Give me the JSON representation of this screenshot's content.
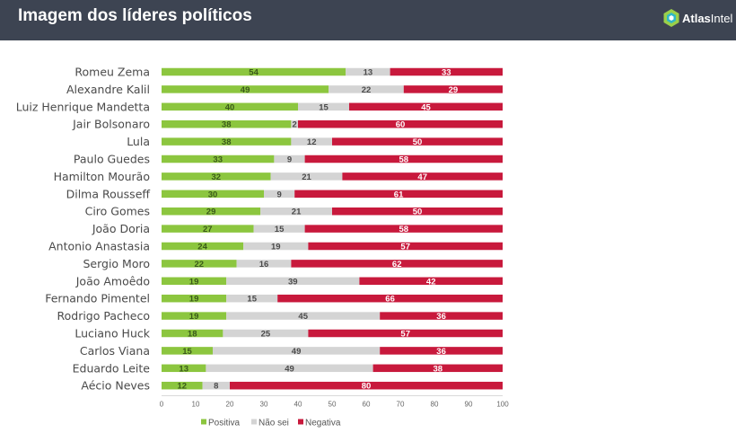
{
  "header": {
    "title": "Imagem dos líderes políticos",
    "brand_atlas": "Atlas",
    "brand_intel": "Intel"
  },
  "colors": {
    "header_bg": "#3d4452",
    "positiva": "#8cc63f",
    "nao_sei": "#d4d4d4",
    "negativa": "#c8193c"
  },
  "chart_data": {
    "type": "bar",
    "orientation": "horizontal",
    "stacked": true,
    "categories": [
      "Romeu Zema",
      "Alexandre Kalil",
      "Luiz Henrique Mandetta",
      "Jair Bolsonaro",
      "Lula",
      "Paulo Guedes",
      "Hamilton Mourão",
      "Dilma Rousseff",
      "Ciro Gomes",
      "João Doria",
      "Antonio Anastasia",
      "Sergio Moro",
      "João Amoêdo",
      "Fernando Pimentel",
      "Rodrigo Pacheco",
      "Luciano Huck",
      "Carlos Viana",
      "Eduardo Leite",
      "Aécio Neves"
    ],
    "series": [
      {
        "name": "Positiva",
        "values": [
          54,
          49,
          40,
          38,
          38,
          33,
          32,
          30,
          29,
          27,
          24,
          22,
          19,
          19,
          19,
          18,
          15,
          13,
          12
        ]
      },
      {
        "name": "Não sei",
        "values": [
          13,
          22,
          15,
          2,
          12,
          9,
          21,
          9,
          21,
          15,
          19,
          16,
          39,
          15,
          45,
          25,
          49,
          49,
          8
        ]
      },
      {
        "name": "Negativa",
        "values": [
          33,
          29,
          45,
          60,
          50,
          58,
          47,
          61,
          50,
          58,
          57,
          62,
          42,
          66,
          36,
          57,
          36,
          38,
          80
        ]
      }
    ],
    "xlim": [
      0,
      100
    ],
    "xticks": [
      0,
      10,
      20,
      30,
      40,
      50,
      60,
      70,
      80,
      90,
      100
    ],
    "legend_position": "bottom",
    "grid": false
  }
}
